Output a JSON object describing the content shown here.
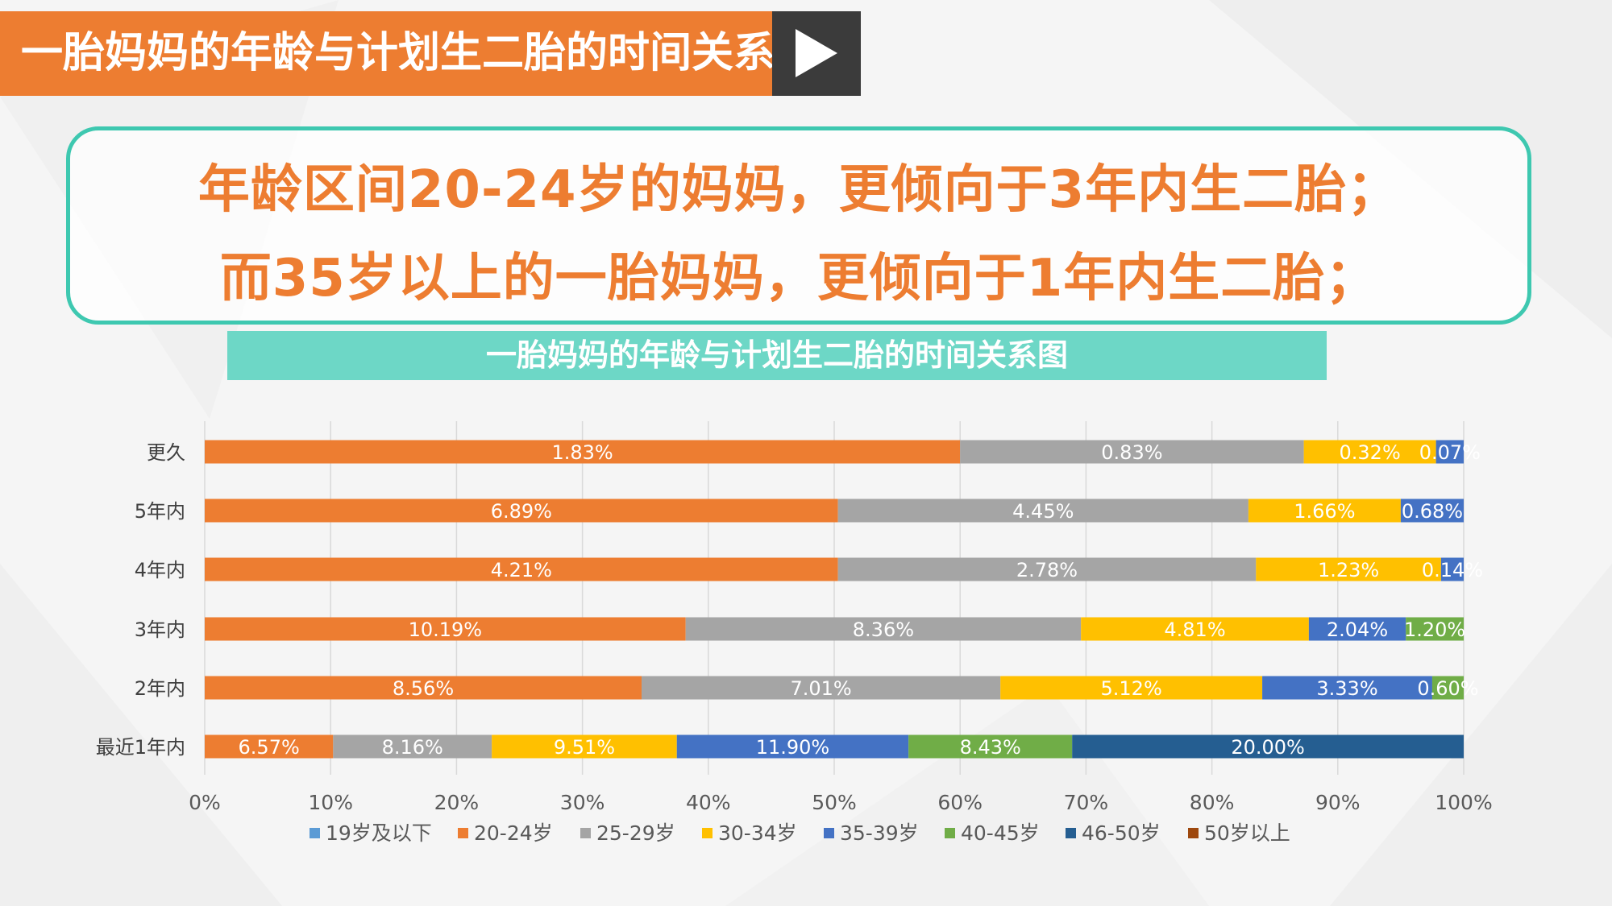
{
  "header": {
    "title": "一胎妈妈的年龄与计划生二胎的时间关系"
  },
  "callout": {
    "line1": "年龄区间20-24岁的妈妈，更倾向于3年内生二胎；",
    "line2": "而35岁以上的一胎妈妈，更倾向于1年内生二胎；"
  },
  "banner": {
    "title": "一胎妈妈的年龄与计划生二胎的时间关系图"
  },
  "chart_data": {
    "type": "bar",
    "orientation": "horizontal-stacked-100",
    "categories": [
      "更久",
      "5年内",
      "4年内",
      "3年内",
      "2年内",
      "最近1年内"
    ],
    "x_ticks": [
      "0%",
      "10%",
      "20%",
      "30%",
      "40%",
      "50%",
      "60%",
      "70%",
      "80%",
      "90%",
      "100%"
    ],
    "xlim": [
      0,
      100
    ],
    "grid": true,
    "legend_position": "bottom",
    "series": [
      {
        "name": "19岁及以下",
        "color": "#5b9bd5",
        "values": [
          0,
          0,
          0,
          0,
          0,
          0
        ],
        "labels": [
          "",
          "",
          "",
          "",
          "",
          ""
        ]
      },
      {
        "name": "20-24岁",
        "color": "#ed7d31",
        "values": [
          60.0,
          50.3,
          50.3,
          38.2,
          34.7,
          10.2
        ],
        "labels": [
          "1.83%",
          "6.89%",
          "4.21%",
          "10.19%",
          "8.56%",
          "6.57%"
        ]
      },
      {
        "name": "25-29岁",
        "color": "#a5a5a5",
        "values": [
          27.3,
          32.6,
          33.2,
          31.4,
          28.5,
          12.6
        ],
        "labels": [
          "0.83%",
          "4.45%",
          "2.78%",
          "8.36%",
          "7.01%",
          "8.16%"
        ]
      },
      {
        "name": "30-34岁",
        "color": "#ffc000",
        "values": [
          10.5,
          12.1,
          14.7,
          18.1,
          20.8,
          14.7
        ],
        "labels": [
          "0.32%",
          "1.66%",
          "1.23%",
          "4.81%",
          "5.12%",
          "9.51%"
        ]
      },
      {
        "name": "35-39岁",
        "color": "#4472c4",
        "values": [
          2.2,
          5.0,
          1.8,
          7.7,
          13.5,
          18.4
        ],
        "labels": [
          "0.07%",
          "0.68%",
          "0.14%",
          "2.04%",
          "3.33%",
          "11.90%"
        ]
      },
      {
        "name": "40-45岁",
        "color": "#70ad47",
        "values": [
          0,
          0,
          0,
          4.6,
          2.5,
          13.0
        ],
        "labels": [
          "",
          "",
          "",
          "1.20%",
          "0.60%",
          "8.43%"
        ]
      },
      {
        "name": "46-50岁",
        "color": "#255e91",
        "values": [
          0,
          0,
          0,
          0,
          0,
          31.1
        ],
        "labels": [
          "",
          "",
          "",
          "",
          "",
          "20.00%"
        ]
      },
      {
        "name": "50岁以上",
        "color": "#9e480e",
        "values": [
          0,
          0,
          0,
          0,
          0,
          0
        ],
        "labels": [
          "",
          "",
          "",
          "",
          "",
          ""
        ]
      }
    ]
  }
}
